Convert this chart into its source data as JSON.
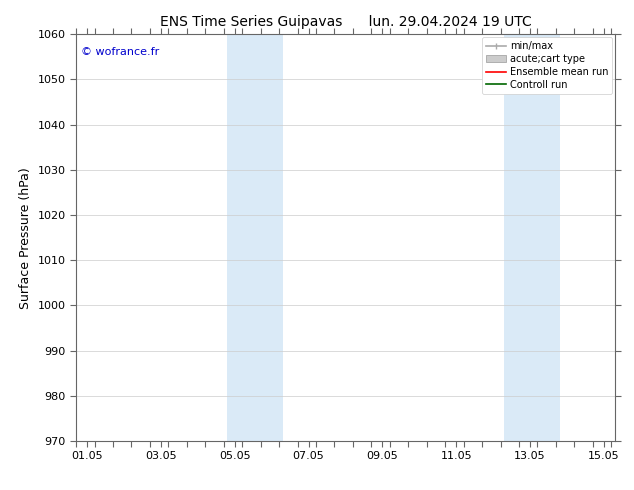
{
  "title_left": "ENS Time Series Guipavas",
  "title_right": "lun. 29.04.2024 19 UTC",
  "ylabel": "Surface Pressure (hPa)",
  "ylim": [
    970,
    1060
  ],
  "yticks": [
    970,
    980,
    990,
    1000,
    1010,
    1020,
    1030,
    1040,
    1050,
    1060
  ],
  "xtick_labels": [
    "01.05",
    "03.05",
    "05.05",
    "07.05",
    "09.05",
    "11.05",
    "13.05",
    "15.05"
  ],
  "xtick_positions": [
    0,
    2,
    4,
    6,
    8,
    10,
    12,
    14
  ],
  "xlim": [
    -0.3,
    14.3
  ],
  "shade_bands": [
    {
      "xmin": 3.8,
      "xmax": 5.3,
      "color": "#daeaf7"
    },
    {
      "xmin": 11.3,
      "xmax": 12.8,
      "color": "#daeaf7"
    }
  ],
  "watermark": "© wofrance.fr",
  "watermark_color": "#0000cc",
  "legend_entries": [
    {
      "label": "min/max",
      "color": "#aaaaaa",
      "lw": 1.2
    },
    {
      "label": "acute;cart type",
      "color": "#cccccc",
      "lw": 6
    },
    {
      "label": "Ensemble mean run",
      "color": "#ff0000",
      "lw": 1.2
    },
    {
      "label": "Controll run",
      "color": "#006600",
      "lw": 1.2
    }
  ],
  "bg_color": "#ffffff",
  "grid_color": "#cccccc",
  "title_fontsize": 10,
  "tick_fontsize": 8,
  "ylabel_fontsize": 9,
  "legend_fontsize": 7
}
